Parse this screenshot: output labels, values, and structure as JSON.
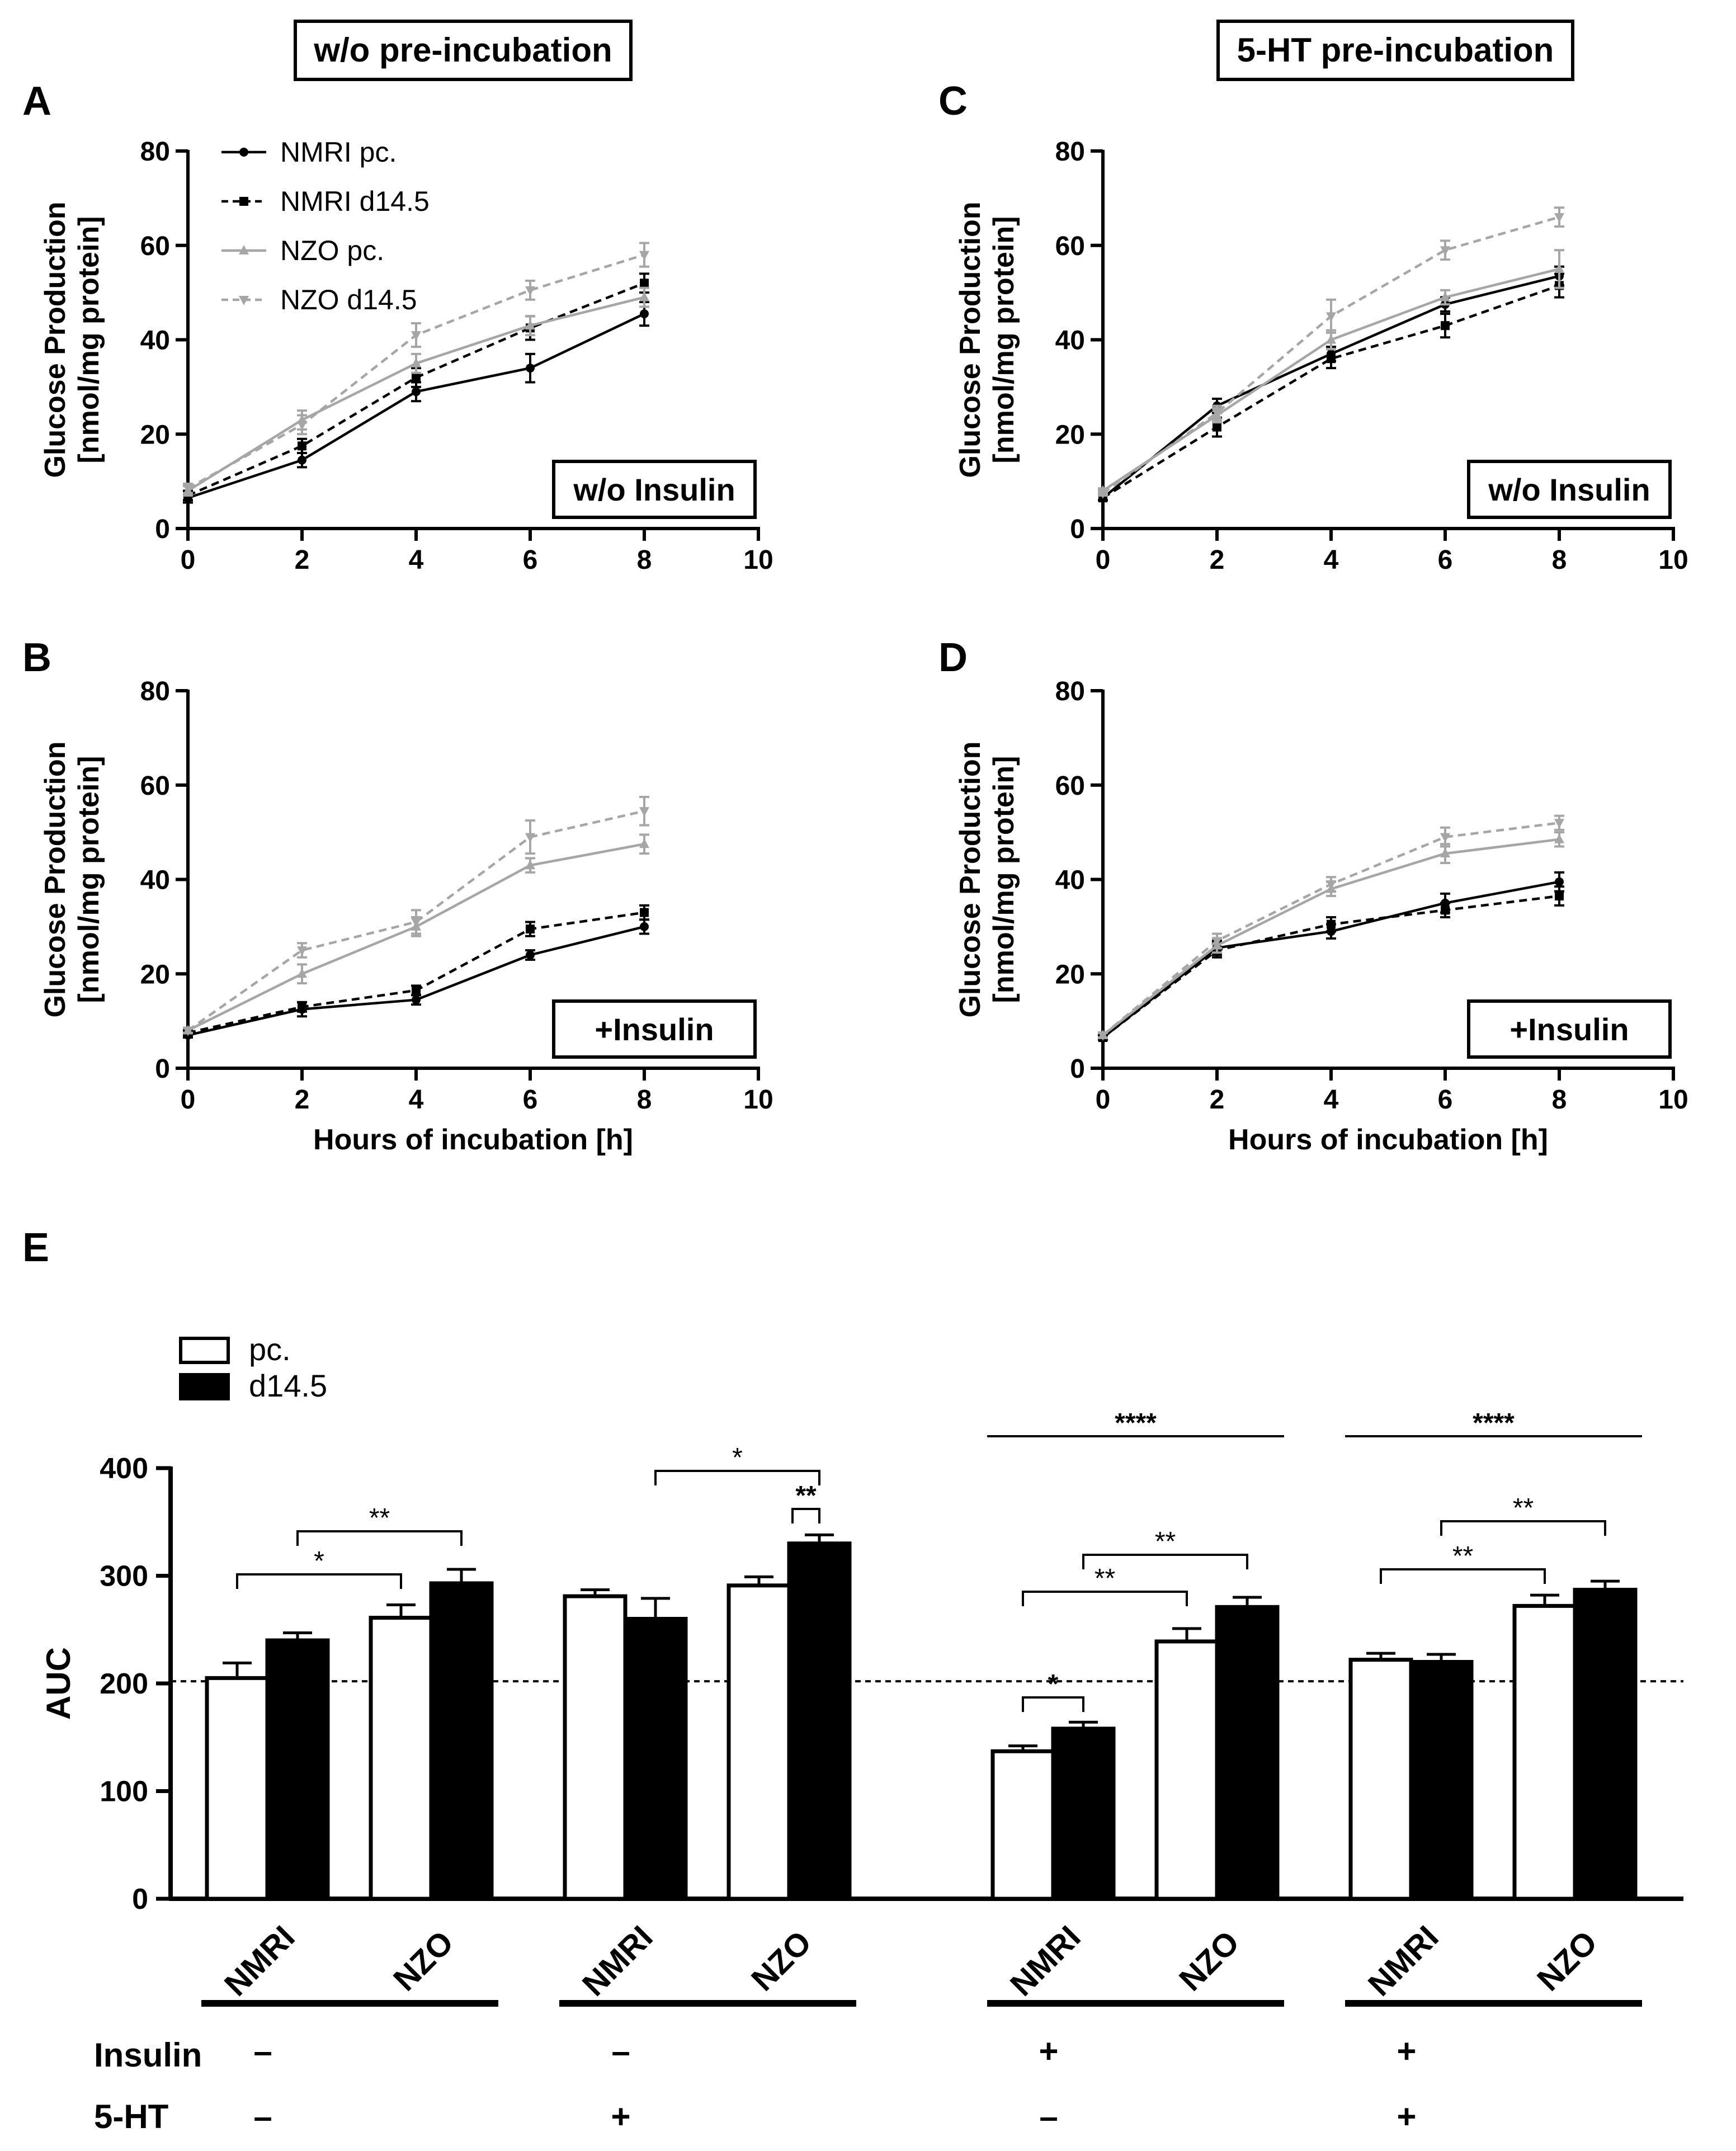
{
  "section_titles": {
    "left": "w/o pre-incubation",
    "right": "5-HT pre-incubation"
  },
  "colors": {
    "black": "#000000",
    "grey": "#a6a6a6"
  },
  "legend_series": [
    "NMRI pc.",
    "NMRI d14.5",
    "NZO pc.",
    "NZO d14.5"
  ],
  "chart_data": [
    {
      "panel": "A",
      "type": "line",
      "box_label": "w/o Insulin",
      "xlabel": "",
      "ylabel_line1": "Glucose Production",
      "ylabel_line2": "[nmol/mg protein]",
      "xlim": [
        0,
        10
      ],
      "ylim": [
        0,
        80
      ],
      "xticks": [
        "0",
        "2",
        "4",
        "6",
        "8",
        "10"
      ],
      "yticks": [
        "0",
        "20",
        "40",
        "60",
        "80"
      ],
      "x": [
        0,
        2,
        4,
        6,
        8
      ],
      "series": [
        {
          "name": "NMRI pc.",
          "values": [
            6.5,
            14.5,
            29,
            34,
            45.5
          ],
          "err": [
            1,
            1.5,
            2,
            3,
            2.5
          ]
        },
        {
          "name": "NMRI d14.5",
          "values": [
            7,
            17.5,
            32,
            42.5,
            52
          ],
          "err": [
            1,
            1.5,
            2,
            2.5,
            2
          ]
        },
        {
          "name": "NZO pc.",
          "values": [
            8,
            23,
            35,
            43,
            49
          ],
          "err": [
            1,
            2,
            2,
            2,
            2
          ]
        },
        {
          "name": "NZO d14.5",
          "values": [
            8.5,
            22,
            41,
            50.5,
            58
          ],
          "err": [
            1,
            2,
            2.5,
            2,
            2.5
          ]
        }
      ]
    },
    {
      "panel": "B",
      "type": "line",
      "box_label": "+Insulin",
      "xlabel": "Hours of incubation [h]",
      "ylabel_line1": "Glucose Production",
      "ylabel_line2": "[nmol/mg protein]",
      "xlim": [
        0,
        10
      ],
      "ylim": [
        0,
        80
      ],
      "xticks": [
        "0",
        "2",
        "4",
        "6",
        "8",
        "10"
      ],
      "yticks": [
        "0",
        "20",
        "40",
        "60",
        "80"
      ],
      "x": [
        0,
        2,
        4,
        6,
        8
      ],
      "series": [
        {
          "name": "NMRI pc.",
          "values": [
            7,
            12.5,
            14.5,
            24,
            30
          ],
          "err": [
            0.5,
            1.5,
            1,
            1,
            1.5
          ]
        },
        {
          "name": "NMRI d14.5",
          "values": [
            7.5,
            13,
            16.5,
            29.5,
            33
          ],
          "err": [
            0.5,
            1,
            1,
            1.5,
            1.5
          ]
        },
        {
          "name": "NZO pc.",
          "values": [
            8,
            20,
            30,
            43,
            47.5
          ],
          "err": [
            0.5,
            2,
            2,
            1.5,
            2
          ]
        },
        {
          "name": "NZO d14.5",
          "values": [
            8,
            25,
            31,
            49,
            54.5
          ],
          "err": [
            0.5,
            1.5,
            2.5,
            3.5,
            3
          ]
        }
      ]
    },
    {
      "panel": "C",
      "type": "line",
      "box_label": "w/o Insulin",
      "xlabel": "",
      "ylabel_line1": "Glucose Production",
      "ylabel_line2": "[nmol/mg protein]",
      "xlim": [
        0,
        10
      ],
      "ylim": [
        0,
        80
      ],
      "xticks": [
        "0",
        "2",
        "4",
        "6",
        "8",
        "10"
      ],
      "yticks": [
        "0",
        "20",
        "40",
        "60",
        "80"
      ],
      "x": [
        0,
        2,
        4,
        6,
        8
      ],
      "series": [
        {
          "name": "NMRI pc.",
          "values": [
            6.5,
            26,
            37,
            47.5,
            53.5
          ],
          "err": [
            0.5,
            1.5,
            1.5,
            1.5,
            2
          ]
        },
        {
          "name": "NMRI d14.5",
          "values": [
            6.5,
            21.5,
            36,
            43,
            51.5
          ],
          "err": [
            0.5,
            2,
            2,
            2.5,
            2.5
          ]
        },
        {
          "name": "NZO pc.",
          "values": [
            8,
            24,
            40,
            49,
            55
          ],
          "err": [
            0.5,
            1.5,
            2,
            1.5,
            4
          ]
        },
        {
          "name": "NZO d14.5",
          "values": [
            7.5,
            24.5,
            45,
            59,
            66
          ],
          "err": [
            0.5,
            1.5,
            3.5,
            2,
            2
          ]
        }
      ]
    },
    {
      "panel": "D",
      "type": "line",
      "box_label": "+Insulin",
      "xlabel": "Hours of incubation [h]",
      "ylabel_line1": "Glucose Production",
      "ylabel_line2": "[nmol/mg protein]",
      "xlim": [
        0,
        10
      ],
      "ylim": [
        0,
        80
      ],
      "xticks": [
        "0",
        "2",
        "4",
        "6",
        "8",
        "10"
      ],
      "yticks": [
        "0",
        "20",
        "40",
        "60",
        "80"
      ],
      "x": [
        0,
        2,
        4,
        6,
        8
      ],
      "series": [
        {
          "name": "NMRI pc.",
          "values": [
            6.5,
            25.5,
            29,
            35,
            39.5
          ],
          "err": [
            0.5,
            1.5,
            1.5,
            2,
            2
          ]
        },
        {
          "name": "NMRI d14.5",
          "values": [
            6.5,
            25,
            30.5,
            33.5,
            36.5
          ],
          "err": [
            0.5,
            1.5,
            1.5,
            1.5,
            2
          ]
        },
        {
          "name": "NZO pc.",
          "values": [
            7,
            26,
            38,
            45.5,
            48.5
          ],
          "err": [
            0.5,
            1.5,
            1.5,
            2,
            1.5
          ]
        },
        {
          "name": "NZO d14.5",
          "values": [
            7,
            27,
            39,
            49,
            52
          ],
          "err": [
            0.5,
            1.5,
            1.5,
            2,
            1.5
          ]
        }
      ]
    },
    {
      "panel": "E",
      "type": "bar",
      "ylabel": "AUC",
      "ylim": [
        0,
        400
      ],
      "yticks": [
        "0",
        "100",
        "200",
        "300",
        "400"
      ],
      "reference_line": 202,
      "legend": [
        "pc.",
        "d14.5"
      ],
      "categories": [
        "NMRI",
        "NZO",
        "NMRI",
        "NZO",
        "NMRI",
        "NZO",
        "NMRI",
        "NZO"
      ],
      "series": [
        {
          "name": "pc.",
          "values": [
            205,
            261,
            281,
            291,
            137,
            239,
            222,
            272
          ],
          "err": [
            14,
            12,
            6,
            8,
            5,
            12,
            6,
            10
          ]
        },
        {
          "name": "d14.5",
          "values": [
            240,
            293,
            260,
            330,
            158,
            271,
            220,
            287
          ],
          "err": [
            7,
            13,
            19,
            8,
            6,
            9,
            7,
            8
          ]
        }
      ],
      "condition_labels": [
        "Insulin",
        "5-HT"
      ],
      "conditions": [
        {
          "insulin": "–",
          "ht": "–"
        },
        {
          "insulin": "–",
          "ht": "+"
        },
        {
          "insulin": "+",
          "ht": "–"
        },
        {
          "insulin": "+",
          "ht": "+"
        }
      ],
      "significance": [
        {
          "label": "*",
          "from": "NMRI pc. (group 1)",
          "to": "NZO pc. (group 1)",
          "bold": false
        },
        {
          "label": "**",
          "from": "NMRI d14.5 (group 1)",
          "to": "NZO d14.5 (group 1)",
          "bold": false
        },
        {
          "label": "*",
          "from": "NMRI d14.5 (group 2)",
          "to": "NZO d14.5 (group 2)",
          "bold": false
        },
        {
          "label": "**",
          "from": "NZO pc. (group 2)",
          "to": "NZO d14.5 (group 2)",
          "bold": true
        },
        {
          "label": "*",
          "from": "NMRI pc. (group 3)",
          "to": "NMRI d14.5 (group 3)",
          "bold": true
        },
        {
          "label": "**",
          "from": "NMRI pc. (group 3)",
          "to": "NZO pc. (group 3)",
          "bold": false
        },
        {
          "label": "**",
          "from": "NMRI d14.5 (group 3)",
          "to": "NZO d14.5 (group 3)",
          "bold": false
        },
        {
          "label": "****",
          "from": "group 3 start",
          "to": "group 3 end",
          "bold": true
        },
        {
          "label": "**",
          "from": "NMRI pc. (group 4)",
          "to": "NZO pc. (group 4)",
          "bold": false
        },
        {
          "label": "**",
          "from": "NMRI d14.5 (group 4)",
          "to": "NZO d14.5 (group 4)",
          "bold": false
        },
        {
          "label": "****",
          "from": "group 4 start",
          "to": "group 4 end",
          "bold": true
        }
      ]
    }
  ]
}
